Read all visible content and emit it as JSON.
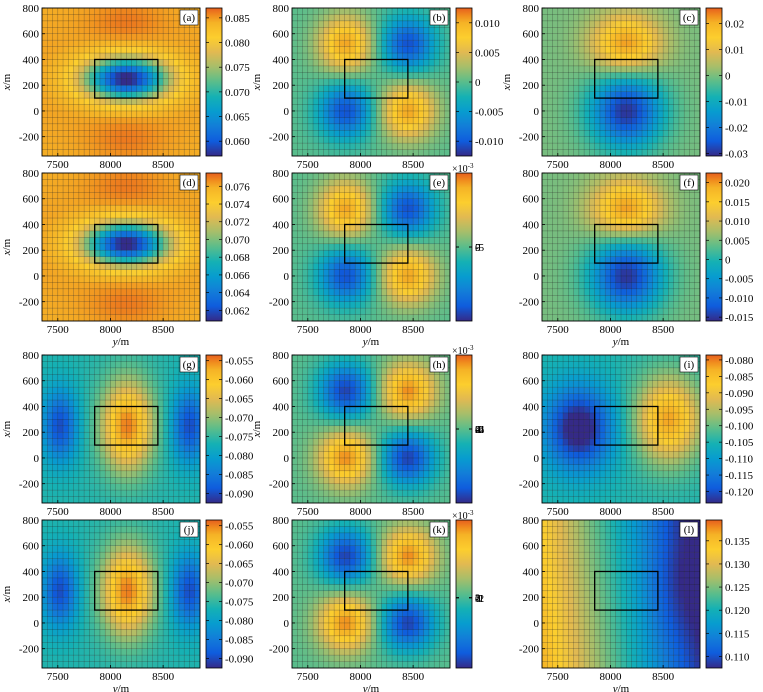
{
  "figure": {
    "x_axis": {
      "label_var": "y",
      "label_unit": "/m",
      "ticks": [
        7500,
        8000,
        8500
      ],
      "range": [
        7350,
        8850
      ]
    },
    "y_axis": {
      "label_var": "x",
      "label_unit": "/m",
      "ticks": [
        800,
        600,
        400,
        200,
        0,
        -200
      ],
      "range": [
        -350,
        800
      ]
    },
    "grid_step": 50,
    "body_rect": {
      "x_range": [
        7850,
        8450
      ],
      "y_range": [
        100,
        400
      ]
    }
  },
  "chart_data": [
    {
      "panel": "(a)",
      "type": "heatmap",
      "field": "a",
      "colorbar_ticks": [
        "0.085",
        "0.080",
        "0.075",
        "0.070",
        "0.065",
        "0.060"
      ],
      "colorbar_range": [
        0.057,
        0.087
      ],
      "multiplier": "",
      "show_ylabel": true,
      "show_xlabel": false
    },
    {
      "panel": "(b)",
      "type": "heatmap",
      "field": "b",
      "colorbar_ticks": [
        "0.010",
        "0.005",
        "0",
        "-0.005",
        "-0.010"
      ],
      "colorbar_range": [
        -0.0125,
        0.0125
      ],
      "multiplier": "",
      "show_ylabel": true,
      "show_xlabel": false
    },
    {
      "panel": "(c)",
      "type": "heatmap",
      "field": "c",
      "colorbar_ticks": [
        "0.02",
        "0.01",
        "0",
        "-0.01",
        "-0.02",
        "-0.03"
      ],
      "colorbar_range": [
        -0.031,
        0.026
      ],
      "multiplier": "",
      "show_ylabel": true,
      "show_xlabel": false
    },
    {
      "panel": "(d)",
      "type": "heatmap",
      "field": "a",
      "colorbar_ticks": [
        "0.076",
        "0.074",
        "0.072",
        "0.070",
        "0.068",
        "0.066",
        "0.064",
        "0.062"
      ],
      "colorbar_range": [
        0.0608,
        0.0775
      ],
      "multiplier": "",
      "show_ylabel": true,
      "show_xlabel": true
    },
    {
      "panel": "(e)",
      "type": "heatmap",
      "field": "b",
      "colorbar_ticks": [
        "5",
        "0",
        "-5"
      ],
      "colorbar_range": [
        -5.8,
        5.8
      ],
      "multiplier": "×10-3",
      "show_ylabel": false,
      "show_xlabel": true
    },
    {
      "panel": "(f)",
      "type": "heatmap",
      "field": "c",
      "colorbar_ticks": [
        "0.020",
        "0.015",
        "0.010",
        "0.005",
        "0",
        "-0.005",
        "-0.010",
        "-0.015"
      ],
      "colorbar_range": [
        -0.016,
        0.0225
      ],
      "multiplier": "",
      "show_ylabel": false,
      "show_xlabel": true
    },
    {
      "panel": "(g)",
      "type": "heatmap",
      "field": "g",
      "colorbar_ticks": [
        "-0.055",
        "-0.060",
        "-0.065",
        "-0.070",
        "-0.075",
        "-0.080",
        "-0.085",
        "-0.090"
      ],
      "colorbar_range": [
        -0.0925,
        -0.0535
      ],
      "multiplier": "",
      "show_ylabel": true,
      "show_xlabel": false
    },
    {
      "panel": "(h)",
      "type": "heatmap",
      "field": "h",
      "colorbar_ticks": [
        "6",
        "4",
        "2",
        "0",
        "-2",
        "-4",
        "-6"
      ],
      "colorbar_range": [
        -7,
        7
      ],
      "multiplier": "×10-3",
      "show_ylabel": true,
      "show_xlabel": false
    },
    {
      "panel": "(i)",
      "type": "heatmap",
      "field": "i",
      "colorbar_ticks": [
        "-0.080",
        "-0.085",
        "-0.090",
        "-0.095",
        "-0.100",
        "-0.105",
        "-0.110",
        "-0.115",
        "-0.120"
      ],
      "colorbar_range": [
        -0.1235,
        -0.0785
      ],
      "multiplier": "",
      "show_ylabel": false,
      "show_xlabel": false
    },
    {
      "panel": "(j)",
      "type": "heatmap",
      "field": "g",
      "colorbar_ticks": [
        "-0.055",
        "-0.060",
        "-0.065",
        "-0.070",
        "-0.075",
        "-0.080",
        "-0.085",
        "-0.090"
      ],
      "colorbar_range": [
        -0.0925,
        -0.0535
      ],
      "multiplier": "",
      "show_ylabel": true,
      "show_xlabel": true
    },
    {
      "panel": "(k)",
      "type": "heatmap",
      "field": "h",
      "colorbar_ticks": [
        "3",
        "2",
        "1",
        "0",
        "-1",
        "-2"
      ],
      "colorbar_range": [
        -2.8,
        3.1
      ],
      "multiplier": "×10-3",
      "show_ylabel": false,
      "show_xlabel": true
    },
    {
      "panel": "(l)",
      "type": "heatmap",
      "field": "l",
      "colorbar_ticks": [
        "0.135",
        "0.130",
        "0.125",
        "0.120",
        "0.115",
        "0.110"
      ],
      "colorbar_range": [
        0.1075,
        0.1395
      ],
      "multiplier": "",
      "show_ylabel": false,
      "show_xlabel": true
    }
  ]
}
